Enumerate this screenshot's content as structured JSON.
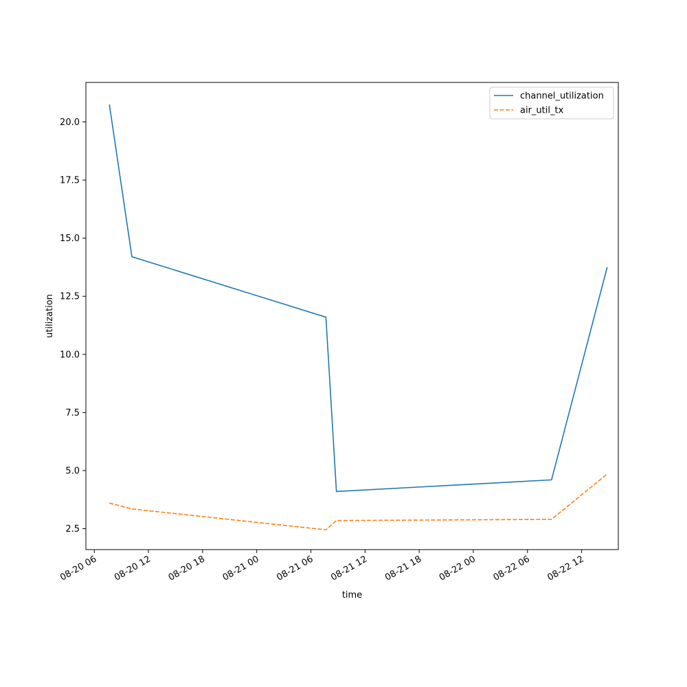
{
  "chart_data": {
    "type": "line",
    "title": "",
    "xlabel": "time",
    "ylabel": "utilization",
    "grid": false,
    "legend_position": "top-right",
    "xlim": [
      "2024-08-20T05:04",
      "2024-08-22T16:04"
    ],
    "ylim": [
      1.6,
      21.7
    ],
    "x_ticks": [
      {
        "value": "2024-08-20T06:00",
        "label": "08-20 06"
      },
      {
        "value": "2024-08-20T12:00",
        "label": "08-20 12"
      },
      {
        "value": "2024-08-20T18:00",
        "label": "08-20 18"
      },
      {
        "value": "2024-08-21T00:00",
        "label": "08-21 00"
      },
      {
        "value": "2024-08-21T06:00",
        "label": "08-21 06"
      },
      {
        "value": "2024-08-21T12:00",
        "label": "08-21 12"
      },
      {
        "value": "2024-08-21T18:00",
        "label": "08-21 18"
      },
      {
        "value": "2024-08-22T00:00",
        "label": "08-22 00"
      },
      {
        "value": "2024-08-22T06:00",
        "label": "08-22 06"
      },
      {
        "value": "2024-08-22T12:00",
        "label": "08-22 12"
      }
    ],
    "y_ticks": [
      {
        "value": 2.5,
        "label": "2.5"
      },
      {
        "value": 5.0,
        "label": "5.0"
      },
      {
        "value": 7.5,
        "label": "7.5"
      },
      {
        "value": 10.0,
        "label": "10.0"
      },
      {
        "value": 12.5,
        "label": "12.5"
      },
      {
        "value": 15.0,
        "label": "15.0"
      },
      {
        "value": 17.5,
        "label": "17.5"
      },
      {
        "value": 20.0,
        "label": "20.0"
      }
    ],
    "series": [
      {
        "name": "channel_utilization",
        "color": "#1f77b4",
        "style": "solid",
        "points": [
          {
            "x": "2024-08-20T07:40",
            "y": 20.75
          },
          {
            "x": "2024-08-20T10:10",
            "y": 14.2
          },
          {
            "x": "2024-08-21T07:40",
            "y": 11.6
          },
          {
            "x": "2024-08-21T08:50",
            "y": 4.1
          },
          {
            "x": "2024-08-22T08:40",
            "y": 4.6
          },
          {
            "x": "2024-08-22T14:50",
            "y": 13.75
          }
        ]
      },
      {
        "name": "air_util_tx",
        "color": "#ff7f0e",
        "style": "dashed",
        "points": [
          {
            "x": "2024-08-20T07:40",
            "y": 3.6
          },
          {
            "x": "2024-08-20T10:10",
            "y": 3.35
          },
          {
            "x": "2024-08-21T07:40",
            "y": 2.45
          },
          {
            "x": "2024-08-21T08:50",
            "y": 2.85
          },
          {
            "x": "2024-08-22T08:40",
            "y": 2.9
          },
          {
            "x": "2024-08-22T14:50",
            "y": 4.85
          }
        ]
      }
    ]
  }
}
